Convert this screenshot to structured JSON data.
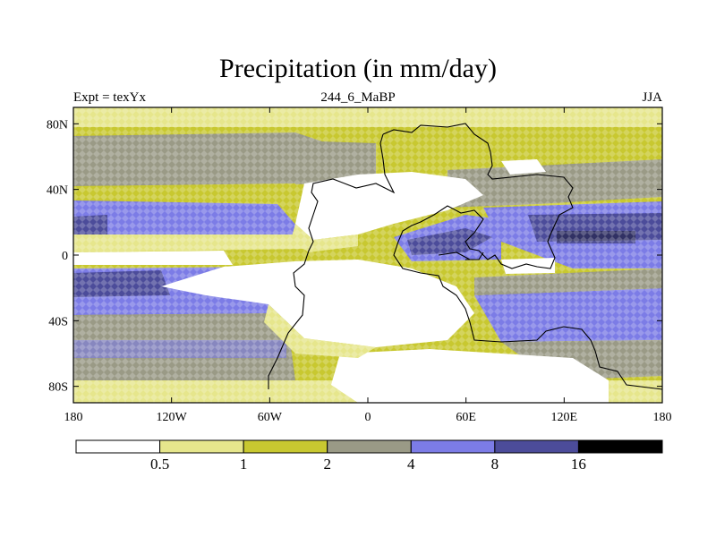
{
  "title": "Precipitation (in mm/day)",
  "subtitle_left": "Expt = texYx",
  "subtitle_center": "244_6_MaBP",
  "subtitle_right": "JJA",
  "axes": {
    "x_ticks": [
      "180",
      "120W",
      "60W",
      "0",
      "60E",
      "120E",
      "180"
    ],
    "y_ticks": [
      "80N",
      "40N",
      "0",
      "40S",
      "80S"
    ]
  },
  "colorbar": {
    "levels": [
      "0.5",
      "1",
      "2",
      "4",
      "8",
      "16"
    ],
    "colors": [
      "#ffffff",
      "#e6e68c",
      "#c8c830",
      "#9a9a86",
      "#7c7ce6",
      "#4c4c9a",
      "#000000"
    ]
  },
  "chart_data": {
    "type": "heatmap",
    "title": "Precipitation (in mm/day)",
    "variable": "Precipitation",
    "units": "mm/day",
    "experiment": "texYx",
    "period": "244_6_MaBP",
    "season": "JJA",
    "xlim": [
      -180,
      180
    ],
    "ylim": [
      -90,
      90
    ],
    "x_ticks": [
      -180,
      -120,
      -60,
      0,
      60,
      120,
      180
    ],
    "y_ticks": [
      80,
      40,
      0,
      -40,
      -80
    ],
    "contour_levels": [
      0.5,
      1,
      2,
      4,
      8,
      16
    ],
    "legend": "bottom"
  }
}
